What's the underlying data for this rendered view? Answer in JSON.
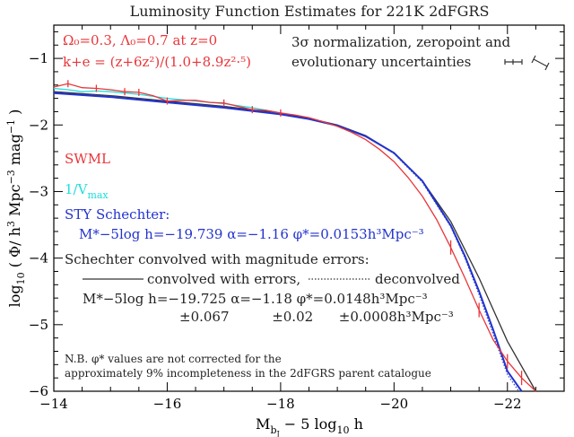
{
  "chart_data": {
    "type": "line",
    "title": "Luminosity Function Estimates for 221K 2dFGRS",
    "xlabel": "M_bJ − 5 log10 h",
    "ylabel": "log10 ( Φ/ h³ Mpc⁻³ mag⁻¹ )",
    "xlim": [
      -14,
      -23
    ],
    "ylim": [
      -6,
      -0.5
    ],
    "x_reversed": true,
    "grid": false,
    "x_ticks": [
      -14,
      -16,
      -18,
      -20,
      -22
    ],
    "x_tick_labels": [
      "−14",
      "−16",
      "−18",
      "−20",
      "−22"
    ],
    "y_ticks": [
      -6,
      -5,
      -4,
      -3,
      -2,
      -1
    ],
    "y_tick_labels": [
      "−6",
      "−5",
      "−4",
      "−3",
      "−2",
      "−1"
    ],
    "series": [
      {
        "name": "SWML",
        "color": "#e8363a",
        "x": [
          -14.0,
          -14.25,
          -14.5,
          -14.75,
          -15.0,
          -15.25,
          -15.5,
          -15.75,
          -16.0,
          -16.25,
          -16.5,
          -16.75,
          -17.0,
          -17.25,
          -17.5,
          -17.75,
          -18.0,
          -18.25,
          -18.5,
          -18.75,
          -19.0,
          -19.25,
          -19.5,
          -19.75,
          -20.0,
          -20.25,
          -20.5,
          -20.75,
          -21.0,
          -21.25,
          -21.5,
          -21.75,
          -22.0,
          -22.25,
          -22.5
        ],
        "y": [
          -1.43,
          -1.38,
          -1.44,
          -1.45,
          -1.47,
          -1.5,
          -1.51,
          -1.56,
          -1.64,
          -1.63,
          -1.63,
          -1.66,
          -1.67,
          -1.72,
          -1.77,
          -1.78,
          -1.82,
          -1.85,
          -1.89,
          -1.95,
          -2.02,
          -2.11,
          -2.22,
          -2.37,
          -2.55,
          -2.79,
          -3.07,
          -3.42,
          -3.84,
          -4.3,
          -4.78,
          -5.23,
          -5.55,
          -5.8,
          -6.05
        ]
      },
      {
        "name": "1/Vmax",
        "color": "#22dddd",
        "x": [
          -14.0,
          -14.25,
          -14.5,
          -14.75,
          -15.0,
          -15.5,
          -16.0,
          -16.5,
          -17.0,
          -17.5,
          -18.0
        ],
        "y": [
          -1.45,
          -1.47,
          -1.5,
          -1.49,
          -1.5,
          -1.54,
          -1.6,
          -1.64,
          -1.68,
          -1.74,
          -1.82
        ]
      },
      {
        "name": "STY Schechter",
        "color": "#2233cc",
        "x": [
          -14.0,
          -15.0,
          -16.0,
          -17.0,
          -18.0,
          -18.5,
          -19.0,
          -19.5,
          -20.0,
          -20.5,
          -21.0,
          -21.25,
          -21.5,
          -21.75,
          -22.0,
          -22.25
        ],
        "y": [
          -1.52,
          -1.58,
          -1.66,
          -1.74,
          -1.84,
          -1.91,
          -2.01,
          -2.17,
          -2.42,
          -2.84,
          -3.51,
          -3.97,
          -4.5,
          -5.08,
          -5.7,
          -6.05
        ]
      },
      {
        "name": "convolved with errors",
        "color": "#333333",
        "x": [
          -14.0,
          -15.0,
          -16.0,
          -17.0,
          -18.0,
          -18.5,
          -19.0,
          -19.5,
          -20.0,
          -20.5,
          -21.0,
          -21.5,
          -22.0,
          -22.5
        ],
        "y": [
          -1.5,
          -1.56,
          -1.64,
          -1.72,
          -1.82,
          -1.9,
          -2.0,
          -2.16,
          -2.42,
          -2.84,
          -3.45,
          -4.3,
          -5.25,
          -6.05
        ]
      },
      {
        "name": "deconvolved",
        "color": "#3344dd",
        "x": [
          -14.0,
          -15.0,
          -16.0,
          -17.0,
          -18.0,
          -18.5,
          -19.0,
          -19.5,
          -20.0,
          -20.5,
          -21.0,
          -21.25,
          -21.5,
          -21.75,
          -22.0,
          -22.2
        ],
        "y": [
          -1.51,
          -1.57,
          -1.65,
          -1.73,
          -1.83,
          -1.91,
          -2.01,
          -2.17,
          -2.43,
          -2.86,
          -3.53,
          -4.0,
          -4.55,
          -5.15,
          -5.75,
          -6.05
        ]
      }
    ],
    "swml_error_bars_x": [
      -14.25,
      -14.75,
      -15.25,
      -15.5,
      -16.0,
      -17.0,
      -17.5,
      -18.0,
      -21.0,
      -21.5,
      -22.0,
      -22.25
    ],
    "annotations": {
      "cosmology_line1": "Ω₀=0.3, Λ₀=0.7 at z=0",
      "kcorr_line2": "k+e = (z+6z²)/(1.0+8.9z²·⁵)",
      "uncert_line1": "3σ normalization, zeropoint and",
      "uncert_line2": "evolutionary uncertainties",
      "label_swml": "SWML",
      "label_vmax": "1/V",
      "label_vmax_sub": "max",
      "label_sty": "STY Schechter:",
      "sty_params": "M*−5log h=−19.739  α=−1.16  φ*=0.0153h³Mpc⁻³",
      "schechter_conv_title": "Schechter convolved with magnitude errors:",
      "legend_convolved": "convolved with errors,",
      "legend_deconvolved": "deconvolved",
      "conv_params": "M*−5log h=−19.725  α=−1.18  φ*=0.0148h³Mpc⁻³",
      "conv_errors": "±0.067          ±0.02      ±0.0008h³Mpc⁻³",
      "nb_line1": "N.B. φ* values are not corrected for the",
      "nb_line2": "approximately 9% incompleteness in the 2dFGRS parent catalogue"
    }
  }
}
